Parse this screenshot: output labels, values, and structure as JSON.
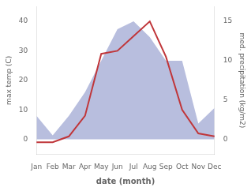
{
  "chart_data": {
    "type": "line",
    "xlabel": "date (month)",
    "ylabel": "max temp (C)",
    "y2label": "med. precipitation (kg/m2)",
    "categories": [
      "Jan",
      "Feb",
      "Mar",
      "Apr",
      "May",
      "Jun",
      "Jul",
      "Aug",
      "Sep",
      "Oct",
      "Nov",
      "Dec"
    ],
    "series": [
      {
        "type": "area",
        "axis": "y2",
        "color": "#b8bede",
        "values": [
          3,
          0.5,
          3,
          6,
          10,
          14,
          15,
          13,
          10,
          10,
          2,
          4
        ]
      },
      {
        "type": "line",
        "color": "#c0363a",
        "values": [
          -1,
          -1,
          1,
          8,
          29,
          30,
          35,
          40,
          28,
          10,
          2,
          1
        ]
      }
    ],
    "ylim": [
      -5,
      45
    ],
    "yticks": [
      0,
      10,
      20,
      30,
      40
    ],
    "y2lim": [
      -1.875,
      16.875
    ],
    "y2ticks": [
      0,
      5,
      10,
      15
    ],
    "grid": false
  }
}
